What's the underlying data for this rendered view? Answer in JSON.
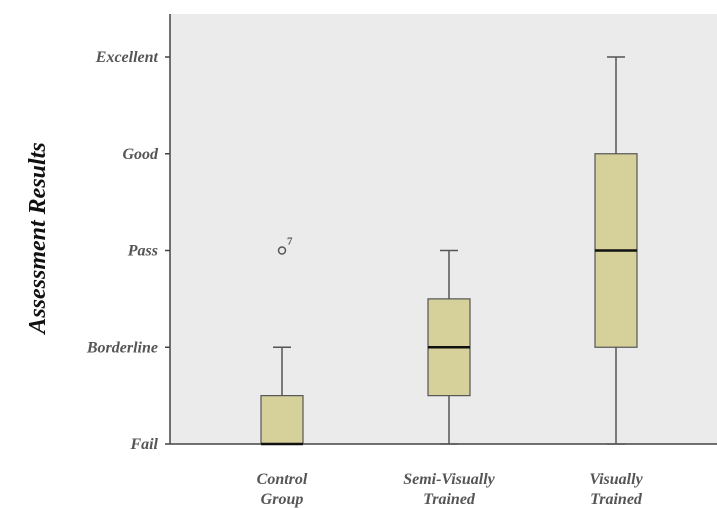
{
  "chart_data": {
    "type": "boxplot",
    "ylabel": "Assessment Results",
    "y_categories": [
      "Fail",
      "Borderline",
      "Pass",
      "Good",
      "Excellent"
    ],
    "y_values": [
      1,
      2,
      3,
      4,
      5
    ],
    "ylim": [
      1,
      5
    ],
    "categories": [
      [
        "Control",
        "Group"
      ],
      [
        "Semi-Visually",
        "Trained"
      ],
      [
        "Visually",
        "Trained"
      ]
    ],
    "boxes": [
      {
        "whisker_low": 1,
        "q1": 1,
        "median": 1,
        "q3": 1.5,
        "whisker_high": 2,
        "outliers": [
          {
            "value": 3,
            "label": "7"
          }
        ]
      },
      {
        "whisker_low": 1,
        "q1": 1.5,
        "median": 2,
        "q3": 2.5,
        "whisker_high": 3,
        "outliers": []
      },
      {
        "whisker_low": 1,
        "q1": 2,
        "median": 3,
        "q3": 4,
        "whisker_high": 5,
        "outliers": []
      }
    ],
    "grid": false,
    "legend": "none"
  },
  "colors": {
    "plot_background": "#ebebeb",
    "box_fill": "#d6d09b",
    "box_stroke": "#555555",
    "median": "#111111",
    "axis": "#444444"
  }
}
